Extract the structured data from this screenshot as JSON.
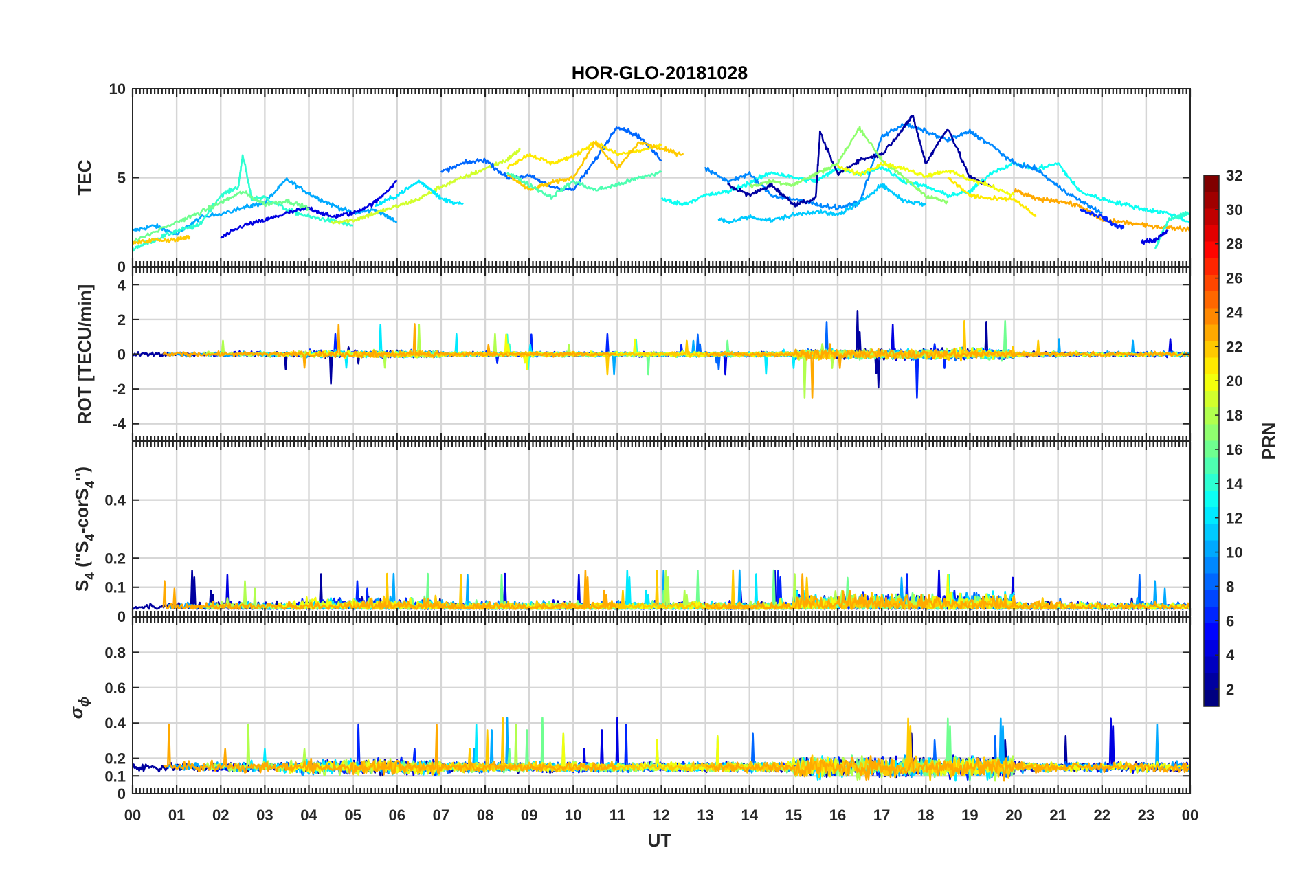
{
  "chart_data": {
    "type": "line",
    "title": "HOR-GLO-20181028",
    "xlabel": "UT",
    "xlim": [
      0,
      24
    ],
    "x_tick_labels": [
      "00",
      "01",
      "02",
      "03",
      "04",
      "05",
      "06",
      "07",
      "08",
      "09",
      "10",
      "11",
      "12",
      "13",
      "14",
      "15",
      "16",
      "17",
      "18",
      "19",
      "20",
      "21",
      "22",
      "23",
      "00"
    ],
    "colorbar": {
      "label": "PRN",
      "range": [
        1,
        32
      ],
      "tick_labels": [
        "2",
        "4",
        "6",
        "8",
        "10",
        "12",
        "14",
        "16",
        "18",
        "20",
        "22",
        "24",
        "26",
        "28",
        "30",
        "32"
      ],
      "colormap": "jet"
    },
    "panels": [
      {
        "id": "tec",
        "ylabel": "TEC",
        "ylim": [
          0,
          10
        ],
        "y_tick_labels": [
          "0",
          "5",
          "10"
        ],
        "series": [
          {
            "prn": 10,
            "x": [
              0,
              0.5,
              1,
              1.5,
              2.5,
              3,
              3.5,
              4,
              4.5,
              5,
              5.5,
              6
            ],
            "y": [
              2.0,
              2.3,
              1.8,
              2.7,
              3.3,
              3.6,
              4.9,
              4.1,
              3.5,
              3.0,
              3.2,
              2.5
            ]
          },
          {
            "prn": 14,
            "x": [
              0,
              0.5,
              1,
              1.5,
              2,
              2.4,
              2.5,
              2.7,
              3,
              3.5,
              4,
              4.5,
              5
            ],
            "y": [
              1.0,
              1.5,
              2.0,
              2.3,
              4.0,
              4.5,
              6.3,
              3.8,
              3.9,
              3.2,
              2.8,
              2.6,
              2.3
            ]
          },
          {
            "prn": 4,
            "x": [
              2,
              2.5,
              3,
              3.5,
              4,
              4.5,
              5,
              5.5,
              6
            ],
            "y": [
              1.6,
              2.3,
              2.6,
              3.0,
              3.3,
              2.8,
              3.0,
              3.6,
              4.8
            ]
          },
          {
            "prn": 16,
            "x": [
              0,
              1,
              1.5,
              2,
              2.5,
              3,
              3.5,
              4
            ],
            "y": [
              1.4,
              2.5,
              3.0,
              3.6,
              4.2,
              3.5,
              3.7,
              3.3
            ]
          },
          {
            "prn": 22,
            "x": [
              0,
              0.5,
              1,
              1.3
            ],
            "y": [
              1.3,
              1.5,
              1.5,
              1.7
            ]
          },
          {
            "prn": 19,
            "x": [
              4.5,
              5,
              5.5,
              6,
              6.5,
              7,
              7.5,
              8,
              8.5,
              8.8
            ],
            "y": [
              2.5,
              2.6,
              3.0,
              3.4,
              3.8,
              4.5,
              5.0,
              5.5,
              6.0,
              6.6
            ]
          },
          {
            "prn": 12,
            "x": [
              5.5,
              6,
              6.5,
              6.8,
              7,
              7.5
            ],
            "y": [
              3.4,
              4.0,
              4.8,
              4.3,
              3.8,
              3.5
            ]
          },
          {
            "prn": 8,
            "x": [
              7,
              7.5,
              8,
              8.5,
              9,
              9.5,
              10,
              10.5,
              11,
              11.5,
              12
            ],
            "y": [
              5.3,
              5.8,
              6.0,
              5.0,
              5.1,
              4.5,
              4.3,
              6.0,
              7.9,
              7.3,
              6.0
            ]
          },
          {
            "prn": 21,
            "x": [
              8.5,
              9,
              9.5,
              10,
              10.5,
              11,
              11.5,
              12
            ],
            "y": [
              5.6,
              6.3,
              5.8,
              6.2,
              7.0,
              6.3,
              6.5,
              6.8
            ]
          },
          {
            "prn": 22,
            "x": [
              8.5,
              9,
              9.5,
              10,
              10.5,
              11,
              11.5,
              12,
              12.5
            ],
            "y": [
              5.2,
              4.3,
              4.7,
              5.0,
              7.0,
              5.5,
              7.0,
              6.6,
              6.3
            ]
          },
          {
            "prn": 15,
            "x": [
              8.5,
              9,
              9.5,
              10,
              10.5,
              11,
              11.5,
              12
            ],
            "y": [
              5.3,
              4.6,
              3.9,
              4.8,
              4.3,
              4.6,
              5.0,
              5.3
            ]
          },
          {
            "prn": 13,
            "x": [
              12.0,
              12.5,
              13,
              13.5,
              14,
              14.5,
              15,
              15.5,
              16,
              16.5,
              17,
              17.5,
              18,
              18.5,
              19,
              19.5,
              20,
              20.5,
              21,
              21.5,
              22,
              22.5,
              23,
              23.5,
              24
            ],
            "y": [
              3.8,
              3.5,
              4.0,
              4.2,
              4.7,
              5.3,
              5.0,
              4.8,
              5.5,
              5.2,
              5.6,
              4.8,
              4.5,
              4.0,
              4.2,
              5.3,
              5.8,
              5.5,
              5.8,
              4.2,
              3.8,
              3.5,
              3.2,
              3.0,
              2.5
            ]
          },
          {
            "prn": 9,
            "x": [
              13,
              13.5,
              14,
              14.5,
              15,
              15.5,
              16,
              16.5,
              17,
              17.5,
              18,
              18.5,
              19,
              19.5,
              20,
              20.5,
              21,
              21.5,
              22
            ],
            "y": [
              5.5,
              4.8,
              5.2,
              4.0,
              3.8,
              3.5,
              3.3,
              3.6,
              7.3,
              8.0,
              7.6,
              7.1,
              7.6,
              6.8,
              5.8,
              5.5,
              4.5,
              3.7,
              3.0
            ]
          },
          {
            "prn": 2,
            "x": [
              13.5,
              14,
              14.5,
              15,
              15.5,
              15.6,
              16,
              16.5,
              17,
              17.5,
              17.7,
              18,
              18.5,
              19,
              19.5
            ],
            "y": [
              4.6,
              4.0,
              4.6,
              3.5,
              3.8,
              7.5,
              5.2,
              6.0,
              6.3,
              7.8,
              8.5,
              5.8,
              7.8,
              5.0,
              4.5
            ]
          },
          {
            "prn": 11,
            "x": [
              13.3,
              13.5,
              14,
              14.5,
              15,
              15.5,
              16,
              16.5,
              17,
              17.5,
              18
            ],
            "y": [
              2.7,
              2.5,
              2.8,
              2.6,
              2.9,
              3.1,
              2.9,
              3.6,
              4.6,
              3.7,
              3.5
            ]
          },
          {
            "prn": 17,
            "x": [
              14,
              14.5,
              15,
              15.5,
              16,
              16.5,
              17,
              17.5,
              18,
              18.5
            ],
            "y": [
              4.5,
              4.8,
              4.6,
              5.2,
              5.8,
              7.8,
              6.0,
              5.0,
              4.0,
              3.6
            ]
          },
          {
            "prn": 20,
            "x": [
              16,
              16.5,
              17,
              17.5,
              18,
              18.5,
              19,
              19.5,
              20
            ],
            "y": [
              5.6,
              5.2,
              5.8,
              5.5,
              5.1,
              5.4,
              4.9,
              4.5,
              4.0
            ]
          },
          {
            "prn": 21,
            "x": [
              18.5,
              19,
              19.5,
              20,
              20.5
            ],
            "y": [
              5.0,
              4.0,
              3.8,
              3.8,
              2.8
            ]
          },
          {
            "prn": 23,
            "x": [
              20,
              20.5,
              21,
              21.5,
              22,
              22.5,
              23,
              23.5,
              24
            ],
            "y": [
              4.3,
              3.8,
              3.7,
              3.4,
              2.6,
              2.5,
              2.3,
              2.2,
              2.1
            ]
          },
          {
            "prn": 6,
            "x": [
              21.5,
              22,
              22.3,
              22.5
            ],
            "y": [
              3.2,
              2.8,
              2.3,
              2.2
            ]
          },
          {
            "prn": 14,
            "x": [
              23.2,
              23.5,
              23.8,
              24
            ],
            "y": [
              1.0,
              2.6,
              2.9,
              3.0
            ]
          },
          {
            "prn": 4,
            "x": [
              22.9,
              23.2,
              23.5
            ],
            "y": [
              1.4,
              1.5,
              2.0
            ]
          }
        ]
      },
      {
        "id": "rot",
        "ylabel": "ROT [TECU/min]",
        "ylim": [
          -5,
          5
        ],
        "y_tick_labels": [
          "-4",
          "-2",
          "0",
          "2",
          "4"
        ]
      },
      {
        "id": "s4",
        "ylabel_main": "S",
        "ylabel_sub": "4",
        "ylabel_rest": " (\"S",
        "ylabel_sub2": "4",
        "ylabel_rest2": "-corS",
        "ylabel_sub3": "4",
        "ylabel_end": "\")",
        "ylim": [
          0,
          0.6
        ],
        "y_tick_labels": [
          "0",
          "0.1",
          "0.2",
          "0.4"
        ],
        "y_tick_values": [
          0,
          0.1,
          0.2,
          0.4
        ]
      },
      {
        "id": "sigma",
        "ylabel_main": "σ",
        "ylabel_sub": "ϕ",
        "ylim": [
          0,
          1
        ],
        "y_tick_labels": [
          "0",
          "0.1",
          "0.2",
          "0.4",
          "0.6",
          "0.8"
        ],
        "y_tick_values": [
          0,
          0.1,
          0.2,
          0.4,
          0.6,
          0.8
        ]
      }
    ]
  }
}
